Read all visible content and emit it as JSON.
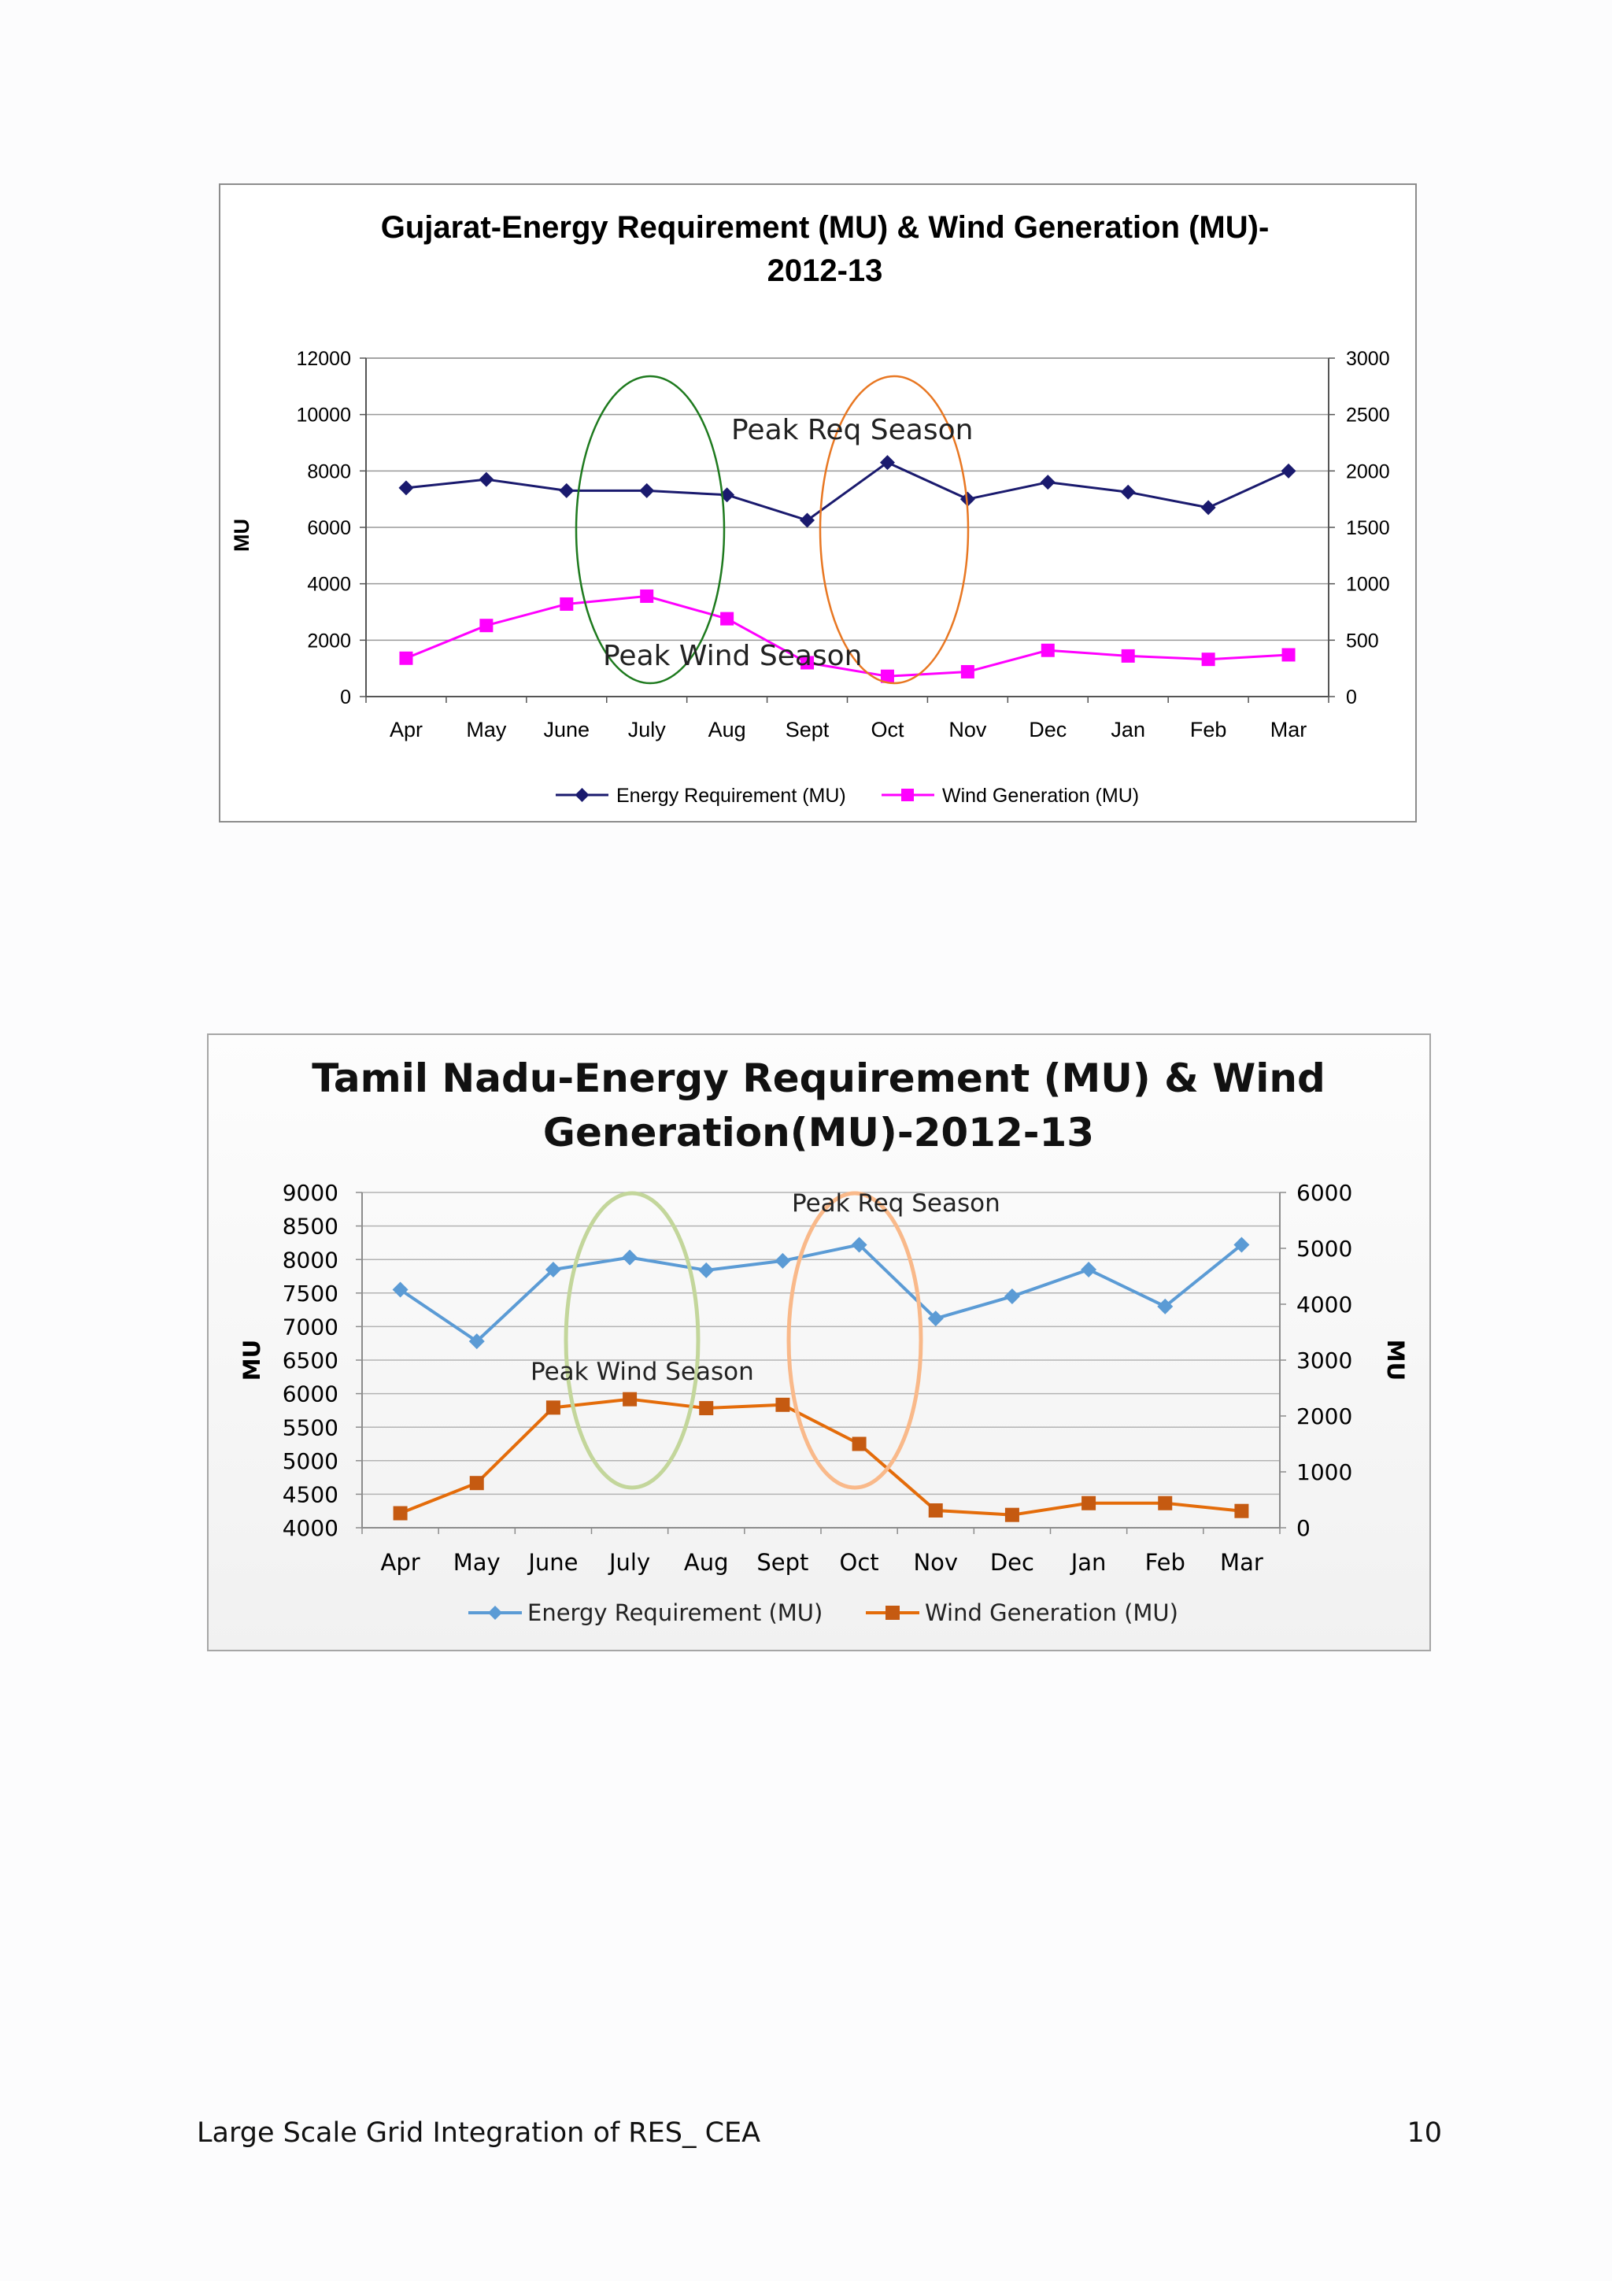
{
  "chart_data": [
    {
      "type": "line",
      "title": "Gujarat-Energy Requirement (MU) & Wind Generation (MU)-",
      "subtitle": "2012-13",
      "ylabel": "MU",
      "ylabel_right": "",
      "categories": [
        "Apr",
        "May",
        "June",
        "July",
        "Aug",
        "Sept",
        "Oct",
        "Nov",
        "Dec",
        "Jan",
        "Feb",
        "Mar"
      ],
      "y_left": {
        "min": 0,
        "max": 12000,
        "ticks": [
          0,
          2000,
          4000,
          6000,
          8000,
          10000,
          12000
        ]
      },
      "y_right": {
        "min": 0,
        "max": 3000,
        "ticks": [
          0,
          500,
          1000,
          1500,
          2000,
          2500,
          3000
        ]
      },
      "series": [
        {
          "name": "Energy Requirement (MU)",
          "axis": "left",
          "marker": "diamond",
          "color": "#1a1a6e",
          "values": [
            7400,
            7700,
            7300,
            7300,
            7150,
            6250,
            8300,
            7000,
            7600,
            7250,
            6700,
            8000
          ]
        },
        {
          "name": "Wind Generation (MU)",
          "axis": "right",
          "marker": "square",
          "color": "#ff00ff",
          "values": [
            340,
            630,
            820,
            890,
            690,
            300,
            180,
            220,
            410,
            360,
            330,
            370
          ]
        }
      ],
      "annotations": [
        {
          "text": "Peak Req Season",
          "color": "#e87722"
        },
        {
          "text": "Peak Wind Season",
          "color": "#1e7a1e"
        }
      ],
      "legend": "bottom",
      "grid": true
    },
    {
      "type": "line",
      "title": "Tamil Nadu-Energy Requirement (MU) & Wind",
      "subtitle": "Generation(MU)-2012-13",
      "ylabel": "MU",
      "ylabel_right": "MU",
      "categories": [
        "Apr",
        "May",
        "June",
        "July",
        "Aug",
        "Sept",
        "Oct",
        "Nov",
        "Dec",
        "Jan",
        "Feb",
        "Mar"
      ],
      "y_left": {
        "min": 4000,
        "max": 9000,
        "ticks": [
          4000,
          4500,
          5000,
          5500,
          6000,
          6500,
          7000,
          7500,
          8000,
          8500,
          9000
        ]
      },
      "y_right": {
        "min": 0,
        "max": 6000,
        "ticks": [
          0,
          1000,
          2000,
          3000,
          4000,
          5000,
          6000
        ]
      },
      "series": [
        {
          "name": "Energy Requirement (MU)",
          "axis": "left",
          "marker": "diamond",
          "color": "#5b9bd5",
          "values": [
            7550,
            6780,
            7850,
            8030,
            7840,
            7980,
            8220,
            7120,
            7450,
            7850,
            7300,
            8220
          ]
        },
        {
          "name": "Wind Generation (MU)",
          "axis": "right",
          "marker": "square",
          "color": "#e46c0a",
          "values": [
            260,
            800,
            2150,
            2300,
            2140,
            2200,
            1500,
            310,
            230,
            440,
            440,
            300
          ]
        }
      ],
      "annotations": [
        {
          "text": "Peak Req Season",
          "color": "#f9b98a"
        },
        {
          "text": "Peak Wind Season",
          "color": "#c3d69b"
        }
      ],
      "legend": "bottom",
      "grid": true
    }
  ],
  "footer": {
    "left": "Large Scale Grid Integration of RES_ CEA",
    "right": "10"
  }
}
